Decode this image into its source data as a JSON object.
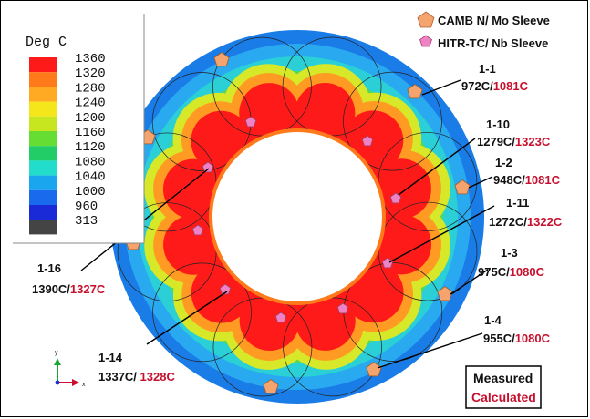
{
  "colorbar": {
    "title": "Deg C",
    "levels": [
      {
        "value": "1360",
        "color": "#ff1a1a"
      },
      {
        "value": "1320",
        "color": "#ff7a1a"
      },
      {
        "value": "1280",
        "color": "#ffaa22"
      },
      {
        "value": "1240",
        "color": "#f4e61a"
      },
      {
        "value": "1200",
        "color": "#c8e620"
      },
      {
        "value": "1160",
        "color": "#66dd33"
      },
      {
        "value": "1120",
        "color": "#22cc66"
      },
      {
        "value": "1080",
        "color": "#22ddcc"
      },
      {
        "value": "1040",
        "color": "#1aa6ee"
      },
      {
        "value": "1000",
        "color": "#1a6aee"
      },
      {
        "value": "960",
        "color": "#1a2ad6"
      },
      {
        "value": "313",
        "color": "#444444"
      }
    ]
  },
  "legend_key": {
    "camb": {
      "label": "CAMB N/ Mo Sleeve",
      "color": "#f4a46c"
    },
    "hitr": {
      "label": "HITR-TC/ Nb Sleeve",
      "color": "#ee82c4"
    }
  },
  "box_legend": {
    "measured": "Measured",
    "calculated": "Calculated"
  },
  "axis_labels": {
    "y": "y",
    "x": "x"
  },
  "callouts": [
    {
      "id": "1-1",
      "measured": "972C/",
      "calculated": "1081C"
    },
    {
      "id": "1-10",
      "measured": "1279C/",
      "calculated": "1323C"
    },
    {
      "id": "1-2",
      "measured": "948C/",
      "calculated": "1081C"
    },
    {
      "id": "1-11",
      "measured": "1272C/",
      "calculated": "1322C"
    },
    {
      "id": "1-3",
      "measured": "975C/",
      "calculated": "1080C"
    },
    {
      "id": "1-4",
      "measured": "955C/",
      "calculated": "1080C"
    },
    {
      "id": "1-16",
      "measured": "1390C/",
      "calculated": "1327C"
    },
    {
      "id": "1-14",
      "measured": "1337C/ ",
      "calculated": "1328C"
    }
  ],
  "colors": {
    "outer_ring": "#1a7ce6",
    "hot": "#ff1a1a",
    "calculated_text": "#c8102e"
  }
}
